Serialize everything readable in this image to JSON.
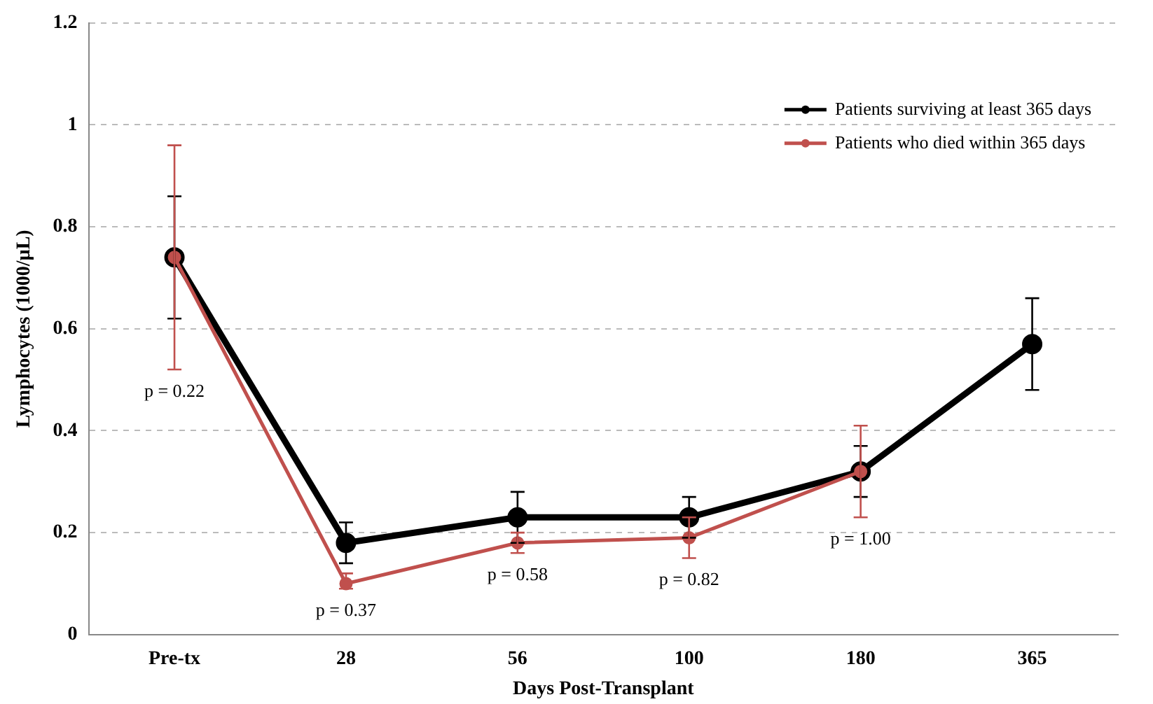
{
  "chart_data": {
    "type": "line",
    "xlabel": "Days Post-Transplant",
    "ylabel": "Lymphocytes (1000/µL)",
    "categories": [
      "Pre-tx",
      "28",
      "56",
      "100",
      "180",
      "365"
    ],
    "series": [
      {
        "name": "Patients surviving at least 365 days",
        "color": "#000000",
        "values": [
          0.74,
          0.18,
          0.23,
          0.23,
          0.32,
          0.57
        ],
        "errors": [
          [
            0.62,
            0.86
          ],
          [
            0.14,
            0.22
          ],
          [
            0.18,
            0.28
          ],
          [
            0.19,
            0.27
          ],
          [
            0.27,
            0.37
          ],
          [
            0.48,
            0.66
          ]
        ]
      },
      {
        "name": "Patients who died within 365 days",
        "color": "#c0504d",
        "values": [
          0.74,
          0.1,
          0.18,
          0.19,
          0.32,
          null
        ],
        "errors": [
          [
            0.52,
            0.96
          ],
          [
            0.09,
            0.12
          ],
          [
            0.16,
            0.2
          ],
          [
            0.15,
            0.23
          ],
          [
            0.23,
            0.41
          ],
          null
        ]
      }
    ],
    "ylim": [
      0,
      1.2
    ],
    "yticks": [
      0,
      0.2,
      0.4,
      0.6,
      0.8,
      1,
      1.2
    ],
    "grid": "y",
    "legend": "top right",
    "marker": "circle",
    "annotations": [
      "p = 0.22",
      "p = 0.37",
      "p = 0.58",
      "p = 0.82",
      "p = 1.00"
    ]
  }
}
